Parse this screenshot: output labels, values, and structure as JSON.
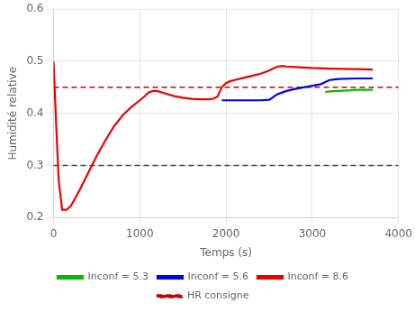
{
  "chart_data": {
    "type": "line",
    "xlabel": "Temps (s)",
    "ylabel": "Humidité relative",
    "xlim": [
      0,
      4000
    ],
    "ylim": [
      0.2,
      0.6
    ],
    "xticks": [
      0,
      1000,
      2000,
      3000,
      4000
    ],
    "yticks": [
      0.2,
      0.3,
      0.4,
      0.5,
      0.6
    ],
    "grid": true,
    "legend": "bottom",
    "series": [
      {
        "name": "HR consigne",
        "type": "hline",
        "color": "#cc0000",
        "line_style": "dashed",
        "values": [
          0.45
        ]
      },
      {
        "type": "hline",
        "color": "#444444",
        "line_style": "dashed",
        "values": [
          0.3
        ]
      },
      {
        "name": "Inconf = 5.3",
        "type": "line",
        "color": "#00bb00",
        "line_style": "solid",
        "x": [
          3150,
          3200,
          3300,
          3400,
          3500,
          3600,
          3700
        ],
        "values": [
          0.441,
          0.442,
          0.443,
          0.444,
          0.445,
          0.445,
          0.445
        ]
      },
      {
        "name": "Inconf = 5.6",
        "type": "line",
        "color": "#0000ee",
        "line_style": "solid",
        "x": [
          1950,
          2000,
          2050,
          2100,
          2200,
          2400,
          2500,
          2520,
          2560,
          2600,
          2650,
          2700,
          2800,
          2900,
          3000,
          3100,
          3150,
          3200,
          3300,
          3500,
          3700
        ],
        "values": [
          0.425,
          0.425,
          0.425,
          0.425,
          0.425,
          0.425,
          0.426,
          0.428,
          0.433,
          0.437,
          0.44,
          0.443,
          0.447,
          0.45,
          0.453,
          0.456,
          0.46,
          0.464,
          0.466,
          0.467,
          0.467
        ]
      },
      {
        "name": "Inconf = 8.6",
        "type": "line",
        "color": "#ee0000",
        "line_style": "solid",
        "x": [
          0,
          30,
          60,
          100,
          150,
          200,
          300,
          400,
          500,
          600,
          700,
          800,
          900,
          1000,
          1050,
          1100,
          1150,
          1200,
          1300,
          1400,
          1500,
          1600,
          1700,
          1800,
          1850,
          1900,
          1950,
          2000,
          2050,
          2100,
          2200,
          2300,
          2400,
          2500,
          2520,
          2560,
          2600,
          2650,
          2700,
          2800,
          3000,
          3200,
          3500,
          3700
        ],
        "values": [
          0.5,
          0.38,
          0.27,
          0.215,
          0.215,
          0.222,
          0.252,
          0.285,
          0.318,
          0.348,
          0.375,
          0.396,
          0.412,
          0.425,
          0.432,
          0.44,
          0.443,
          0.443,
          0.438,
          0.433,
          0.43,
          0.428,
          0.427,
          0.427,
          0.428,
          0.432,
          0.45,
          0.458,
          0.462,
          0.464,
          0.468,
          0.472,
          0.476,
          0.482,
          0.484,
          0.487,
          0.49,
          0.491,
          0.49,
          0.489,
          0.487,
          0.486,
          0.485,
          0.484
        ]
      }
    ]
  }
}
